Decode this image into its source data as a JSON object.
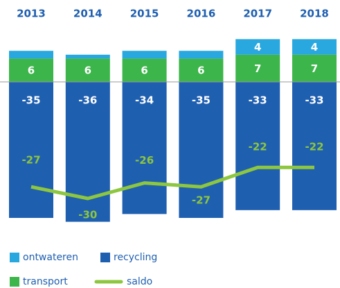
{
  "chart_data": {
    "type": "stacked-bar-line",
    "categories": [
      "2013",
      "2014",
      "2015",
      "2016",
      "2017",
      "2018"
    ],
    "series": [
      {
        "name": "ontwateren",
        "color": "#29a8e0",
        "values": [
          2,
          1,
          2,
          2,
          4,
          4
        ],
        "value_labels": [
          null,
          null,
          null,
          null,
          "4",
          "4"
        ]
      },
      {
        "name": "recycling",
        "color": "#1f5fb0",
        "values": [
          -35,
          -36,
          -34,
          -35,
          -33,
          -33
        ]
      },
      {
        "name": "transport",
        "color": "#3cb54a",
        "values": [
          6,
          6,
          6,
          6,
          7,
          7
        ]
      },
      {
        "name": "saldo",
        "color": "#8dc63f",
        "type": "line",
        "values": [
          -27,
          -30,
          -26,
          -27,
          -22,
          -22
        ]
      }
    ]
  }
}
